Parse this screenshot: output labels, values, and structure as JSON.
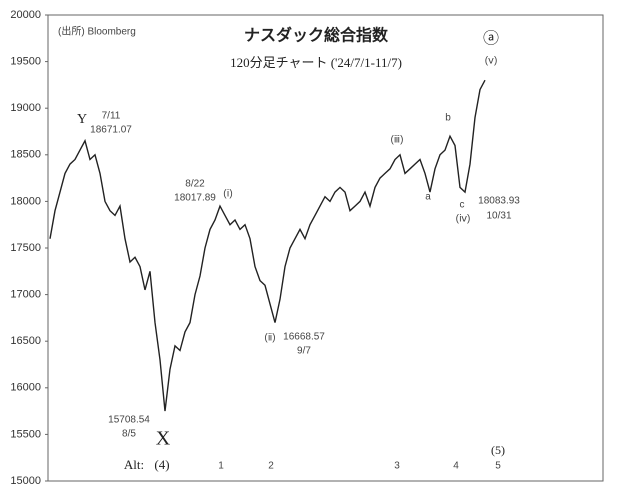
{
  "chart_data": {
    "type": "line",
    "title": "ナスダック総合指数",
    "subtitle": "120分足チャート ('24/7/1-11/7)",
    "source": "(出所) Bloomberg",
    "color": "#222222",
    "values": [
      17600,
      17900,
      18100,
      18300,
      18400,
      18450,
      18550,
      18650,
      18450,
      18500,
      18300,
      18000,
      17900,
      17850,
      17950,
      17600,
      17350,
      17400,
      17300,
      17050,
      17250,
      16700,
      16300,
      15750,
      16200,
      16450,
      16400,
      16600,
      16700,
      17000,
      17200,
      17500,
      17700,
      17800,
      17950,
      17850,
      17750,
      17800,
      17700,
      17750,
      17600,
      17300,
      17150,
      17100,
      16900,
      16700,
      16950,
      17300,
      17500,
      17600,
      17700,
      17600,
      17750,
      17850,
      17950,
      18050,
      18000,
      18100,
      18150,
      18100,
      17900,
      17950,
      18000,
      18100,
      17950,
      18150,
      18250,
      18300,
      18350,
      18450,
      18500,
      18300,
      18350,
      18400,
      18450,
      18300,
      18100,
      18350,
      18500,
      18550,
      18700,
      18600,
      18150,
      18100,
      18400,
      18900,
      19200,
      19300
    ],
    "ylim": [
      15000,
      20000
    ],
    "yticks": [
      15000,
      15500,
      16000,
      16500,
      17000,
      17500,
      18000,
      18500,
      19000,
      19500,
      20000
    ],
    "annotations": [
      "Y",
      "7/11",
      "18671.07",
      "8/22",
      "18017.89",
      "(ⅰ)",
      "(ⅲ)",
      "b",
      "a",
      "c",
      "(ⅳ)",
      "18083.93",
      "10/31",
      "(ⅱ)",
      "16668.57",
      "9/7",
      "15708.54",
      "8/5",
      "X",
      "Alt:",
      "(4)",
      "1",
      "2",
      "3",
      "4",
      "(5)",
      "5",
      "ⓐ",
      "(ⅴ)"
    ]
  }
}
